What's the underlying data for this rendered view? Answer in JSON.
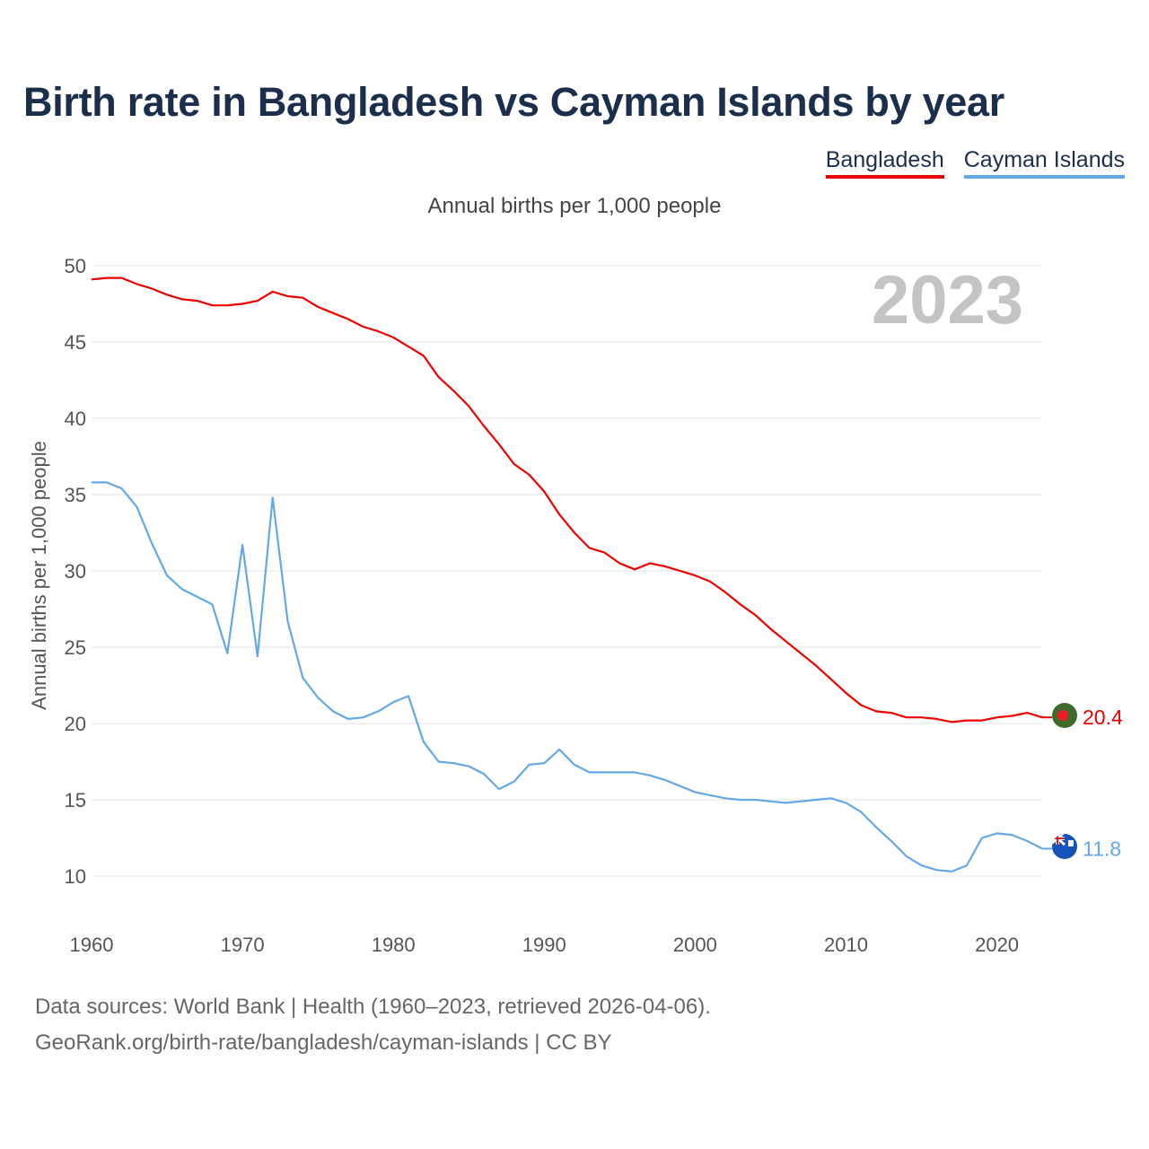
{
  "title": "Birth rate in Bangladesh vs Cayman Islands by year",
  "legend": [
    {
      "name": "Bangladesh",
      "color": "#ee0000"
    },
    {
      "name": "Cayman Islands",
      "color": "#64a8e8"
    }
  ],
  "footer": {
    "line1": "Data sources: World Bank | Health (1960–2023, retrieved 2026-04-06).",
    "line2": "GeoRank.org/birth-rate/bangladesh/cayman-islands | CC BY"
  },
  "chart_data": {
    "type": "line",
    "title": "Birth rate in Bangladesh vs Cayman Islands by year",
    "subtitle": "Annual births per 1,000 people",
    "xlabel": "",
    "ylabel": "Annual births per 1,000 people",
    "year_label": "2023",
    "xlim": [
      1960,
      2023
    ],
    "ylim": [
      10,
      50
    ],
    "x_ticks": [
      1960,
      1970,
      1980,
      1990,
      2000,
      2010,
      2020
    ],
    "y_ticks": [
      10,
      15,
      20,
      25,
      30,
      35,
      40,
      45,
      50
    ],
    "grid": true,
    "legend_position": "top-right",
    "x": [
      1960,
      1961,
      1962,
      1963,
      1964,
      1965,
      1966,
      1967,
      1968,
      1969,
      1970,
      1971,
      1972,
      1973,
      1974,
      1975,
      1976,
      1977,
      1978,
      1979,
      1980,
      1981,
      1982,
      1983,
      1984,
      1985,
      1986,
      1987,
      1988,
      1989,
      1990,
      1991,
      1992,
      1993,
      1994,
      1995,
      1996,
      1997,
      1998,
      1999,
      2000,
      2001,
      2002,
      2003,
      2004,
      2005,
      2006,
      2007,
      2008,
      2009,
      2010,
      2011,
      2012,
      2013,
      2014,
      2015,
      2016,
      2017,
      2018,
      2019,
      2020,
      2021,
      2022,
      2023
    ],
    "series": [
      {
        "name": "Bangladesh",
        "color": "#ee0000",
        "end_label": "20.4",
        "values": [
          49.1,
          49.2,
          49.2,
          48.8,
          48.5,
          48.1,
          47.8,
          47.7,
          47.4,
          47.4,
          47.5,
          47.7,
          48.3,
          48.0,
          47.9,
          47.3,
          46.9,
          46.5,
          46.0,
          45.7,
          45.3,
          44.7,
          44.1,
          42.7,
          41.8,
          40.8,
          39.5,
          38.3,
          37.0,
          36.3,
          35.2,
          33.7,
          32.5,
          31.5,
          31.2,
          30.5,
          30.1,
          30.5,
          30.3,
          30.0,
          29.7,
          29.3,
          28.6,
          27.8,
          27.1,
          26.2,
          25.4,
          24.6,
          23.8,
          22.9,
          22.0,
          21.2,
          20.8,
          20.7,
          20.4,
          20.4,
          20.3,
          20.1,
          20.2,
          20.2,
          20.4,
          20.5,
          20.7,
          20.4
        ]
      },
      {
        "name": "Cayman Islands",
        "color": "#64a8e8",
        "end_label": "11.8",
        "values": [
          35.8,
          35.8,
          35.4,
          34.2,
          31.8,
          29.7,
          28.8,
          28.3,
          27.8,
          24.6,
          31.7,
          24.4,
          34.8,
          26.7,
          23.0,
          21.7,
          20.8,
          20.3,
          20.4,
          20.8,
          21.4,
          21.8,
          18.8,
          17.5,
          17.4,
          17.2,
          16.7,
          15.7,
          16.2,
          17.3,
          17.4,
          18.3,
          17.3,
          16.8,
          16.8,
          16.8,
          16.8,
          16.6,
          16.3,
          15.9,
          15.5,
          15.3,
          15.1,
          15.0,
          15.0,
          14.9,
          14.8,
          14.9,
          15.0,
          15.1,
          14.8,
          14.2,
          13.2,
          12.3,
          11.3,
          10.7,
          10.4,
          10.3,
          10.7,
          12.5,
          12.8,
          12.7,
          12.3,
          11.8
        ]
      }
    ]
  }
}
